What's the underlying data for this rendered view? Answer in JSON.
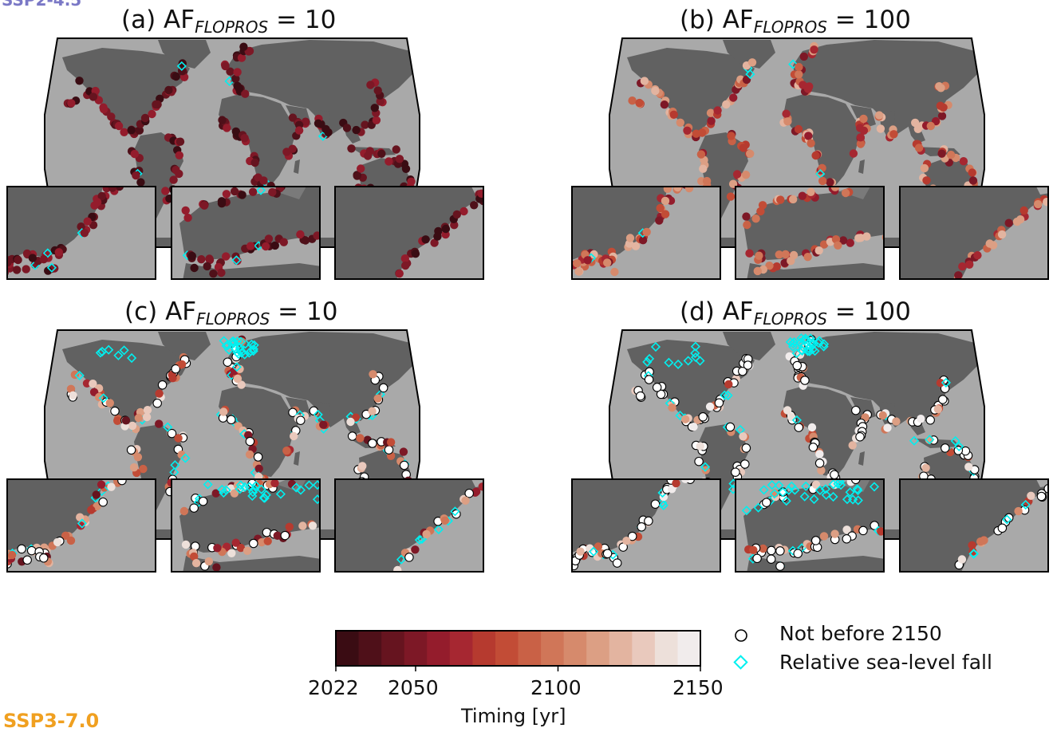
{
  "scenario_top": "SSP2-4.5",
  "scenario_bottom": "SSP3-7.0",
  "panels": [
    {
      "letter": "(a) AF",
      "sub": "FLOPROS",
      "eq": " = 10"
    },
    {
      "letter": "(b) AF",
      "sub": "FLOPROS",
      "eq": " = 100"
    },
    {
      "letter": "(c) AF",
      "sub": "FLOPROS",
      "eq": " = 10"
    },
    {
      "letter": "(d) AF",
      "sub": "FLOPROS",
      "eq": " = 100"
    }
  ],
  "colorbar": {
    "ticks": [
      "2022",
      "2050",
      "2100",
      "2150"
    ],
    "title": "Timing [yr]",
    "range": [
      2022,
      2150
    ],
    "colors": [
      "#3a0c13",
      "#4f1019",
      "#66141f",
      "#7d1826",
      "#941c2c",
      "#a62731",
      "#b63a2f",
      "#c24c36",
      "#c96146",
      "#d07658",
      "#d68a6c",
      "#dc9f84",
      "#e3b4a0",
      "#e9c9bd",
      "#ede0da",
      "#f1ecec"
    ]
  },
  "legend": {
    "not_before": "Not before 2150",
    "sea_level_fall": "Relative sea-level fall"
  },
  "colors": {
    "land": "#616161",
    "ocean": "#a9a9a9",
    "fall_marker": "#00f0f0"
  }
}
